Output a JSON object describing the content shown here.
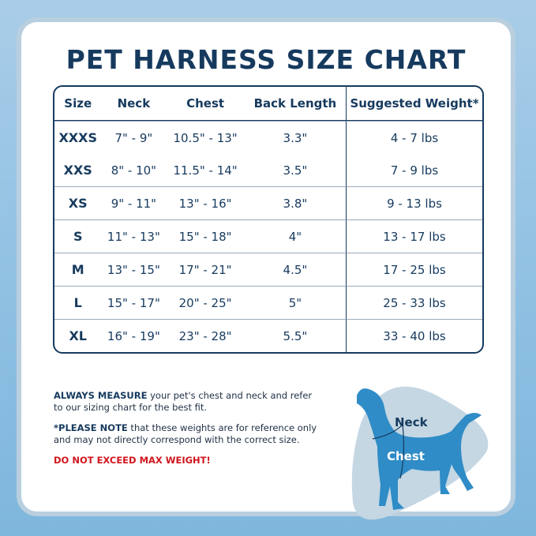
{
  "title": "PET HARNESS SIZE CHART",
  "table": {
    "headers": [
      "Size",
      "Neck",
      "Chest",
      "Back Length",
      "Suggested Weight*"
    ],
    "rows": [
      [
        "XXXS",
        "7\" - 9\"",
        "10.5\" - 13\"",
        "3.3\"",
        "4 - 7 lbs"
      ],
      [
        "XXS",
        "8\" - 10\"",
        "11.5\" - 14\"",
        "3.5\"",
        "7 - 9 lbs"
      ],
      [
        "XS",
        "9\" - 11\"",
        "13\" - 16\"",
        "3.8\"",
        "9 - 13 lbs"
      ],
      [
        "S",
        "11\" - 13\"",
        "15\" - 18\"",
        "4\"",
        "13 - 17 lbs"
      ],
      [
        "M",
        "13\" - 15\"",
        "17\" - 21\"",
        "4.5\"",
        "17 - 25 lbs"
      ],
      [
        "L",
        "15\" - 17\"",
        "20\" - 25\"",
        "5\"",
        "25 - 33 lbs"
      ],
      [
        "XL",
        "16\" - 19\"",
        "23\" - 28\"",
        "5.5\"",
        "33 - 40 lbs"
      ]
    ]
  },
  "notes": {
    "measure_bold": "ALWAYS MEASURE",
    "measure_text": " your pet's chest and neck and refer to our sizing chart for the best fit.",
    "note_bold": "*PLEASE NOTE",
    "note_text": " that these weights are for reference only and may not directly correspond with the correct size.",
    "warning": "DO NOT EXCEED MAX WEIGHT!"
  },
  "diagram": {
    "neck_label": "Neck",
    "chest_label": "Chest",
    "dog_color": "#2f8cc6",
    "blob_color": "#c5d7e3"
  },
  "colors": {
    "navy": "#163a5e",
    "warning": "#d0161e"
  }
}
